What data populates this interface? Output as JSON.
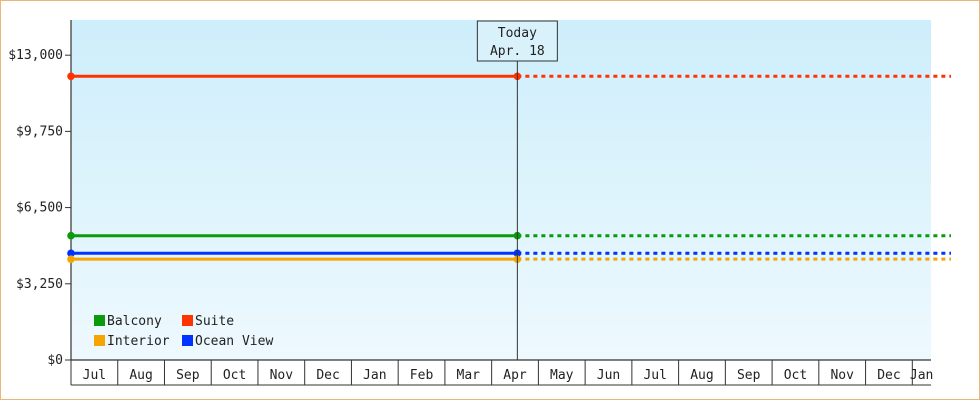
{
  "chart_data": {
    "type": "line",
    "title": "",
    "xlabel": "",
    "ylabel": "",
    "ylim": [
      0,
      14500
    ],
    "y_ticks": [
      "$0",
      "$3,250",
      "$6,500",
      "$9,750",
      "$13,000"
    ],
    "y_tick_values": [
      0,
      3250,
      6500,
      9750,
      13000
    ],
    "x_ticks": [
      "Jul",
      "Aug",
      "Sep",
      "Oct",
      "Nov",
      "Dec",
      "Jan",
      "Feb",
      "Mar",
      "Apr",
      "May",
      "Jun",
      "Jul",
      "Aug",
      "Sep",
      "Oct",
      "Nov",
      "Dec",
      "Jan"
    ],
    "x_range_months": [
      0,
      18.4
    ],
    "today_month": 9.55,
    "today_label": [
      "Today",
      "Apr. 18"
    ],
    "grid": false,
    "legend_position": "bottom-left",
    "series": [
      {
        "name": "Balcony",
        "color": "#0b9a0b",
        "value": 5300
      },
      {
        "name": "Interior",
        "color": "#f5a400",
        "value": 4300
      },
      {
        "name": "Suite",
        "color": "#ff3300",
        "value": 12100
      },
      {
        "name": "Ocean View",
        "color": "#0033ff",
        "value": 4550
      }
    ]
  }
}
